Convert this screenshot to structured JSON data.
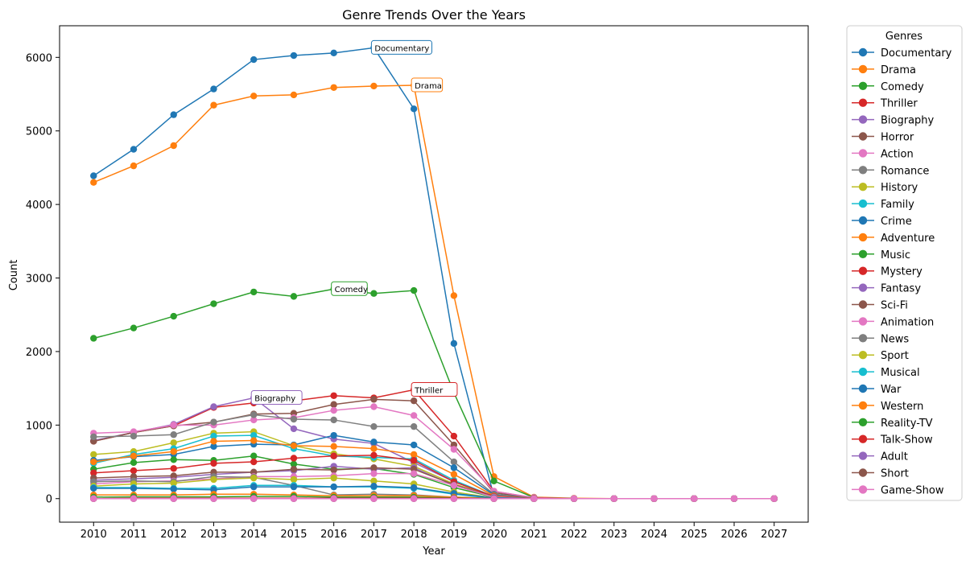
{
  "chart_data": {
    "type": "line",
    "title": "Genre Trends Over the Years",
    "xlabel": "Year",
    "ylabel": "Count",
    "x": [
      2010,
      2011,
      2012,
      2013,
      2014,
      2015,
      2016,
      2017,
      2018,
      2019,
      2020,
      2021,
      2022,
      2023,
      2024,
      2025,
      2026,
      2027
    ],
    "x_tick_labels": [
      "2010",
      "2011",
      "2012",
      "2013",
      "2014",
      "2015",
      "2016",
      "2017",
      "2018",
      "2019",
      "2020",
      "2021",
      "2022",
      "2023",
      "2024",
      "2025",
      "2026",
      "2027"
    ],
    "ylim": [
      -320,
      6430
    ],
    "y_ticks": [
      0,
      1000,
      2000,
      3000,
      4000,
      5000,
      6000
    ],
    "y_tick_labels": [
      "0",
      "1000",
      "2000",
      "3000",
      "4000",
      "5000",
      "6000"
    ],
    "legend_title": "Genres",
    "legend_position": "outside-right",
    "grid": false,
    "series": [
      {
        "name": "Documentary",
        "color": "#1f77b4",
        "values": [
          4390,
          4750,
          5220,
          5570,
          5970,
          6025,
          6060,
          6130,
          5300,
          2110,
          30,
          5,
          0,
          0,
          0,
          0,
          0,
          0
        ]
      },
      {
        "name": "Drama",
        "color": "#ff7f0e",
        "values": [
          4300,
          4525,
          4800,
          5350,
          5475,
          5490,
          5590,
          5610,
          5620,
          2760,
          300,
          20,
          5,
          0,
          0,
          0,
          0,
          0
        ]
      },
      {
        "name": "Comedy",
        "color": "#2ca02c",
        "values": [
          2180,
          2320,
          2480,
          2650,
          2810,
          2750,
          2850,
          2790,
          2830,
          1440,
          240,
          15,
          0,
          0,
          0,
          0,
          0,
          0
        ]
      },
      {
        "name": "Thriller",
        "color": "#d62728",
        "values": [
          780,
          900,
          990,
          1240,
          1300,
          1330,
          1400,
          1370,
          1480,
          850,
          100,
          10,
          0,
          0,
          0,
          0,
          0,
          0
        ]
      },
      {
        "name": "Biography",
        "color": "#9467bd",
        "values": [
          790,
          900,
          1010,
          1250,
          1370,
          950,
          810,
          750,
          490,
          230,
          30,
          5,
          0,
          0,
          0,
          0,
          0,
          0
        ]
      },
      {
        "name": "Horror",
        "color": "#8c564b",
        "values": [
          780,
          900,
          990,
          1040,
          1150,
          1160,
          1280,
          1350,
          1330,
          730,
          80,
          10,
          0,
          0,
          0,
          0,
          0,
          0
        ]
      },
      {
        "name": "Action",
        "color": "#e377c2",
        "values": [
          890,
          910,
          1000,
          1000,
          1070,
          1100,
          1200,
          1250,
          1130,
          670,
          100,
          15,
          0,
          0,
          0,
          0,
          0,
          0
        ]
      },
      {
        "name": "Romance",
        "color": "#7f7f7f",
        "values": [
          840,
          850,
          870,
          1040,
          1140,
          1080,
          1070,
          980,
          980,
          500,
          60,
          5,
          0,
          0,
          0,
          0,
          0,
          0
        ]
      },
      {
        "name": "History",
        "color": "#bcbd22",
        "values": [
          600,
          640,
          760,
          890,
          910,
          720,
          610,
          540,
          440,
          200,
          30,
          5,
          0,
          0,
          0,
          0,
          0,
          0
        ]
      },
      {
        "name": "Family",
        "color": "#17becf",
        "values": [
          480,
          600,
          680,
          850,
          860,
          680,
          580,
          560,
          540,
          250,
          30,
          5,
          0,
          0,
          0,
          0,
          0,
          0
        ]
      },
      {
        "name": "Crime",
        "color": "#1f77b4",
        "values": [
          520,
          570,
          600,
          710,
          740,
          730,
          860,
          770,
          730,
          420,
          50,
          5,
          0,
          0,
          0,
          0,
          0,
          0
        ]
      },
      {
        "name": "Adventure",
        "color": "#ff7f0e",
        "values": [
          500,
          580,
          640,
          780,
          790,
          720,
          710,
          680,
          600,
          330,
          40,
          5,
          0,
          0,
          0,
          0,
          0,
          0
        ]
      },
      {
        "name": "Music",
        "color": "#2ca02c",
        "values": [
          400,
          490,
          530,
          520,
          580,
          470,
          400,
          410,
          330,
          150,
          20,
          0,
          0,
          0,
          0,
          0,
          0,
          0
        ]
      },
      {
        "name": "Mystery",
        "color": "#d62728",
        "values": [
          350,
          380,
          410,
          480,
          500,
          550,
          580,
          590,
          520,
          230,
          30,
          5,
          0,
          0,
          0,
          0,
          0,
          0
        ]
      },
      {
        "name": "Fantasy",
        "color": "#9467bd",
        "values": [
          250,
          270,
          290,
          330,
          360,
          380,
          440,
          400,
          420,
          180,
          25,
          0,
          0,
          0,
          0,
          0,
          0,
          0
        ]
      },
      {
        "name": "Sci-Fi",
        "color": "#8c564b",
        "values": [
          280,
          300,
          310,
          360,
          360,
          400,
          390,
          420,
          400,
          190,
          25,
          0,
          0,
          0,
          0,
          0,
          0,
          0
        ]
      },
      {
        "name": "Animation",
        "color": "#e377c2",
        "values": [
          200,
          230,
          240,
          270,
          300,
          300,
          310,
          340,
          340,
          180,
          20,
          0,
          0,
          0,
          0,
          0,
          0,
          0
        ]
      },
      {
        "name": "News",
        "color": "#7f7f7f",
        "values": [
          230,
          240,
          230,
          300,
          290,
          180,
          50,
          60,
          50,
          20,
          5,
          0,
          0,
          0,
          0,
          0,
          0,
          0
        ]
      },
      {
        "name": "Sport",
        "color": "#bcbd22",
        "values": [
          170,
          200,
          210,
          260,
          280,
          260,
          280,
          240,
          200,
          90,
          10,
          0,
          0,
          0,
          0,
          0,
          0,
          0
        ]
      },
      {
        "name": "Musical",
        "color": "#17becf",
        "values": [
          150,
          150,
          140,
          140,
          180,
          180,
          160,
          160,
          140,
          60,
          5,
          0,
          0,
          0,
          0,
          0,
          0,
          0
        ]
      },
      {
        "name": "War",
        "color": "#1f77b4",
        "values": [
          140,
          140,
          130,
          120,
          160,
          160,
          160,
          170,
          150,
          70,
          10,
          0,
          0,
          0,
          0,
          0,
          0,
          0
        ]
      },
      {
        "name": "Western",
        "color": "#ff7f0e",
        "values": [
          50,
          50,
          50,
          60,
          60,
          50,
          40,
          40,
          40,
          20,
          0,
          0,
          0,
          0,
          0,
          0,
          0,
          0
        ]
      },
      {
        "name": "Reality-TV",
        "color": "#2ca02c",
        "values": [
          20,
          25,
          25,
          25,
          30,
          30,
          20,
          20,
          20,
          10,
          0,
          0,
          0,
          0,
          0,
          0,
          0,
          0
        ]
      },
      {
        "name": "Talk-Show",
        "color": "#d62728",
        "values": [
          0,
          5,
          5,
          5,
          5,
          5,
          5,
          5,
          5,
          5,
          0,
          0,
          0,
          0,
          0,
          0,
          0,
          0
        ]
      },
      {
        "name": "Adult",
        "color": "#9467bd",
        "values": [
          0,
          0,
          0,
          0,
          0,
          0,
          0,
          0,
          0,
          0,
          0,
          0,
          0,
          0,
          0,
          0,
          0,
          0
        ]
      },
      {
        "name": "Short",
        "color": "#8c564b",
        "values": [
          0,
          0,
          0,
          0,
          0,
          0,
          0,
          0,
          0,
          0,
          0,
          0,
          0,
          0,
          0,
          0,
          0,
          0
        ]
      },
      {
        "name": "Game-Show",
        "color": "#e377c2",
        "values": [
          0,
          0,
          0,
          0,
          0,
          0,
          0,
          0,
          0,
          0,
          0,
          0,
          0,
          0,
          0,
          0,
          0,
          0
        ]
      }
    ],
    "annotations": [
      {
        "text": "Documentary",
        "x": 2017,
        "y": 6130,
        "color": "#1f77b4"
      },
      {
        "text": "Drama",
        "x": 2018,
        "y": 5620,
        "color": "#ff7f0e"
      },
      {
        "text": "Comedy",
        "x": 2016,
        "y": 2850,
        "color": "#2ca02c"
      },
      {
        "text": "Thriller",
        "x": 2018,
        "y": 1480,
        "color": "#d62728"
      },
      {
        "text": "Biography",
        "x": 2014,
        "y": 1370,
        "color": "#9467bd"
      }
    ]
  }
}
